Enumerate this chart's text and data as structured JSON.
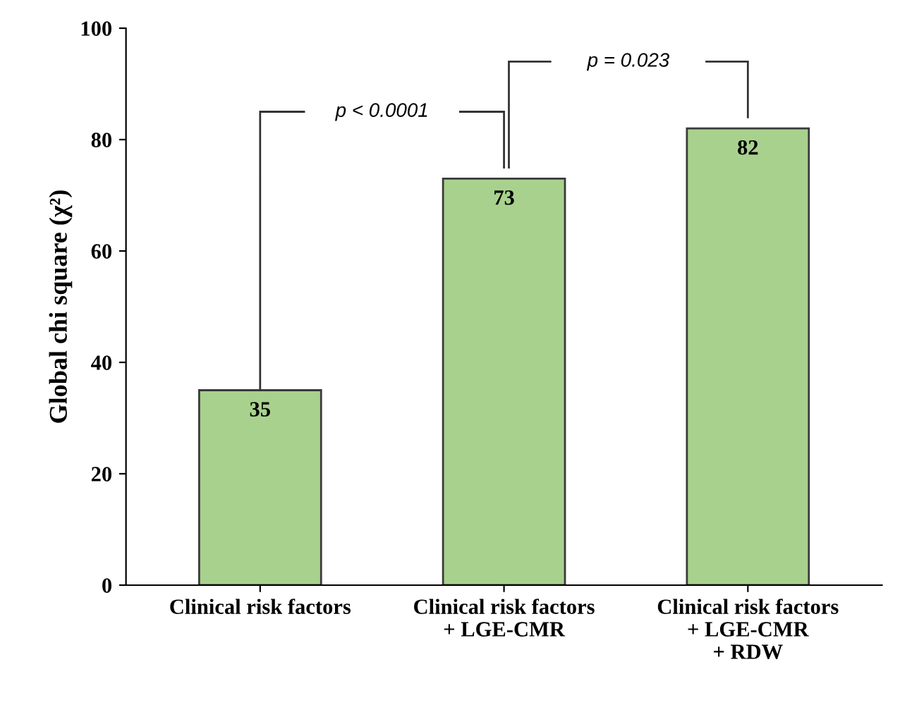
{
  "chart_data": {
    "type": "bar",
    "ylabel": "Global chi square (χ²)",
    "categories": [
      "Clinical risk factors",
      "Clinical risk factors\n+ LGE-CMR",
      "Clinical risk factors\n+ LGE-CMR\n+ RDW"
    ],
    "values": [
      35,
      73,
      82
    ],
    "color": "#a9d18e",
    "data_labels": true,
    "ylim": [
      0,
      100
    ],
    "yticks": [
      0,
      20,
      40,
      60,
      80,
      100
    ],
    "grid": false,
    "annotations": [
      "p < 0.0001",
      "p = 0.023"
    ]
  }
}
